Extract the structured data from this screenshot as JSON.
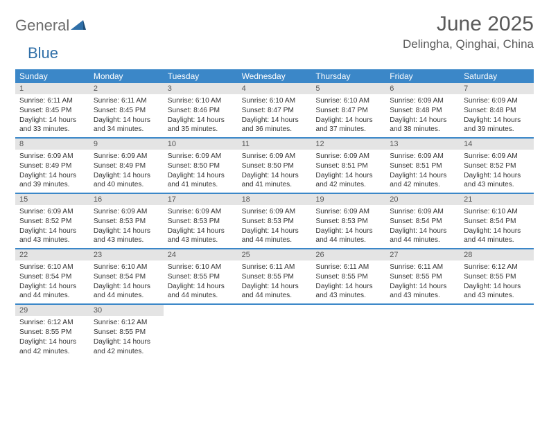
{
  "brand": {
    "part1": "General",
    "part2": "Blue"
  },
  "title": "June 2025",
  "location": "Delingha, Qinghai, China",
  "colors": {
    "header_bg": "#3b87c8",
    "daynum_bg": "#e4e4e4",
    "text": "#333333",
    "title_text": "#5a5a5a",
    "logo_gray": "#6b6b6b",
    "logo_blue": "#2f6fa8"
  },
  "weekdays": [
    "Sunday",
    "Monday",
    "Tuesday",
    "Wednesday",
    "Thursday",
    "Friday",
    "Saturday"
  ],
  "days": [
    {
      "n": 1,
      "sr": "6:11 AM",
      "ss": "8:45 PM",
      "dl": "14 hours and 33 minutes."
    },
    {
      "n": 2,
      "sr": "6:11 AM",
      "ss": "8:45 PM",
      "dl": "14 hours and 34 minutes."
    },
    {
      "n": 3,
      "sr": "6:10 AM",
      "ss": "8:46 PM",
      "dl": "14 hours and 35 minutes."
    },
    {
      "n": 4,
      "sr": "6:10 AM",
      "ss": "8:47 PM",
      "dl": "14 hours and 36 minutes."
    },
    {
      "n": 5,
      "sr": "6:10 AM",
      "ss": "8:47 PM",
      "dl": "14 hours and 37 minutes."
    },
    {
      "n": 6,
      "sr": "6:09 AM",
      "ss": "8:48 PM",
      "dl": "14 hours and 38 minutes."
    },
    {
      "n": 7,
      "sr": "6:09 AM",
      "ss": "8:48 PM",
      "dl": "14 hours and 39 minutes."
    },
    {
      "n": 8,
      "sr": "6:09 AM",
      "ss": "8:49 PM",
      "dl": "14 hours and 39 minutes."
    },
    {
      "n": 9,
      "sr": "6:09 AM",
      "ss": "8:49 PM",
      "dl": "14 hours and 40 minutes."
    },
    {
      "n": 10,
      "sr": "6:09 AM",
      "ss": "8:50 PM",
      "dl": "14 hours and 41 minutes."
    },
    {
      "n": 11,
      "sr": "6:09 AM",
      "ss": "8:50 PM",
      "dl": "14 hours and 41 minutes."
    },
    {
      "n": 12,
      "sr": "6:09 AM",
      "ss": "8:51 PM",
      "dl": "14 hours and 42 minutes."
    },
    {
      "n": 13,
      "sr": "6:09 AM",
      "ss": "8:51 PM",
      "dl": "14 hours and 42 minutes."
    },
    {
      "n": 14,
      "sr": "6:09 AM",
      "ss": "8:52 PM",
      "dl": "14 hours and 43 minutes."
    },
    {
      "n": 15,
      "sr": "6:09 AM",
      "ss": "8:52 PM",
      "dl": "14 hours and 43 minutes."
    },
    {
      "n": 16,
      "sr": "6:09 AM",
      "ss": "8:53 PM",
      "dl": "14 hours and 43 minutes."
    },
    {
      "n": 17,
      "sr": "6:09 AM",
      "ss": "8:53 PM",
      "dl": "14 hours and 43 minutes."
    },
    {
      "n": 18,
      "sr": "6:09 AM",
      "ss": "8:53 PM",
      "dl": "14 hours and 44 minutes."
    },
    {
      "n": 19,
      "sr": "6:09 AM",
      "ss": "8:53 PM",
      "dl": "14 hours and 44 minutes."
    },
    {
      "n": 20,
      "sr": "6:09 AM",
      "ss": "8:54 PM",
      "dl": "14 hours and 44 minutes."
    },
    {
      "n": 21,
      "sr": "6:10 AM",
      "ss": "8:54 PM",
      "dl": "14 hours and 44 minutes."
    },
    {
      "n": 22,
      "sr": "6:10 AM",
      "ss": "8:54 PM",
      "dl": "14 hours and 44 minutes."
    },
    {
      "n": 23,
      "sr": "6:10 AM",
      "ss": "8:54 PM",
      "dl": "14 hours and 44 minutes."
    },
    {
      "n": 24,
      "sr": "6:10 AM",
      "ss": "8:55 PM",
      "dl": "14 hours and 44 minutes."
    },
    {
      "n": 25,
      "sr": "6:11 AM",
      "ss": "8:55 PM",
      "dl": "14 hours and 44 minutes."
    },
    {
      "n": 26,
      "sr": "6:11 AM",
      "ss": "8:55 PM",
      "dl": "14 hours and 43 minutes."
    },
    {
      "n": 27,
      "sr": "6:11 AM",
      "ss": "8:55 PM",
      "dl": "14 hours and 43 minutes."
    },
    {
      "n": 28,
      "sr": "6:12 AM",
      "ss": "8:55 PM",
      "dl": "14 hours and 43 minutes."
    },
    {
      "n": 29,
      "sr": "6:12 AM",
      "ss": "8:55 PM",
      "dl": "14 hours and 42 minutes."
    },
    {
      "n": 30,
      "sr": "6:12 AM",
      "ss": "8:55 PM",
      "dl": "14 hours and 42 minutes."
    }
  ],
  "labels": {
    "sunrise": "Sunrise:",
    "sunset": "Sunset:",
    "daylight": "Daylight:"
  }
}
